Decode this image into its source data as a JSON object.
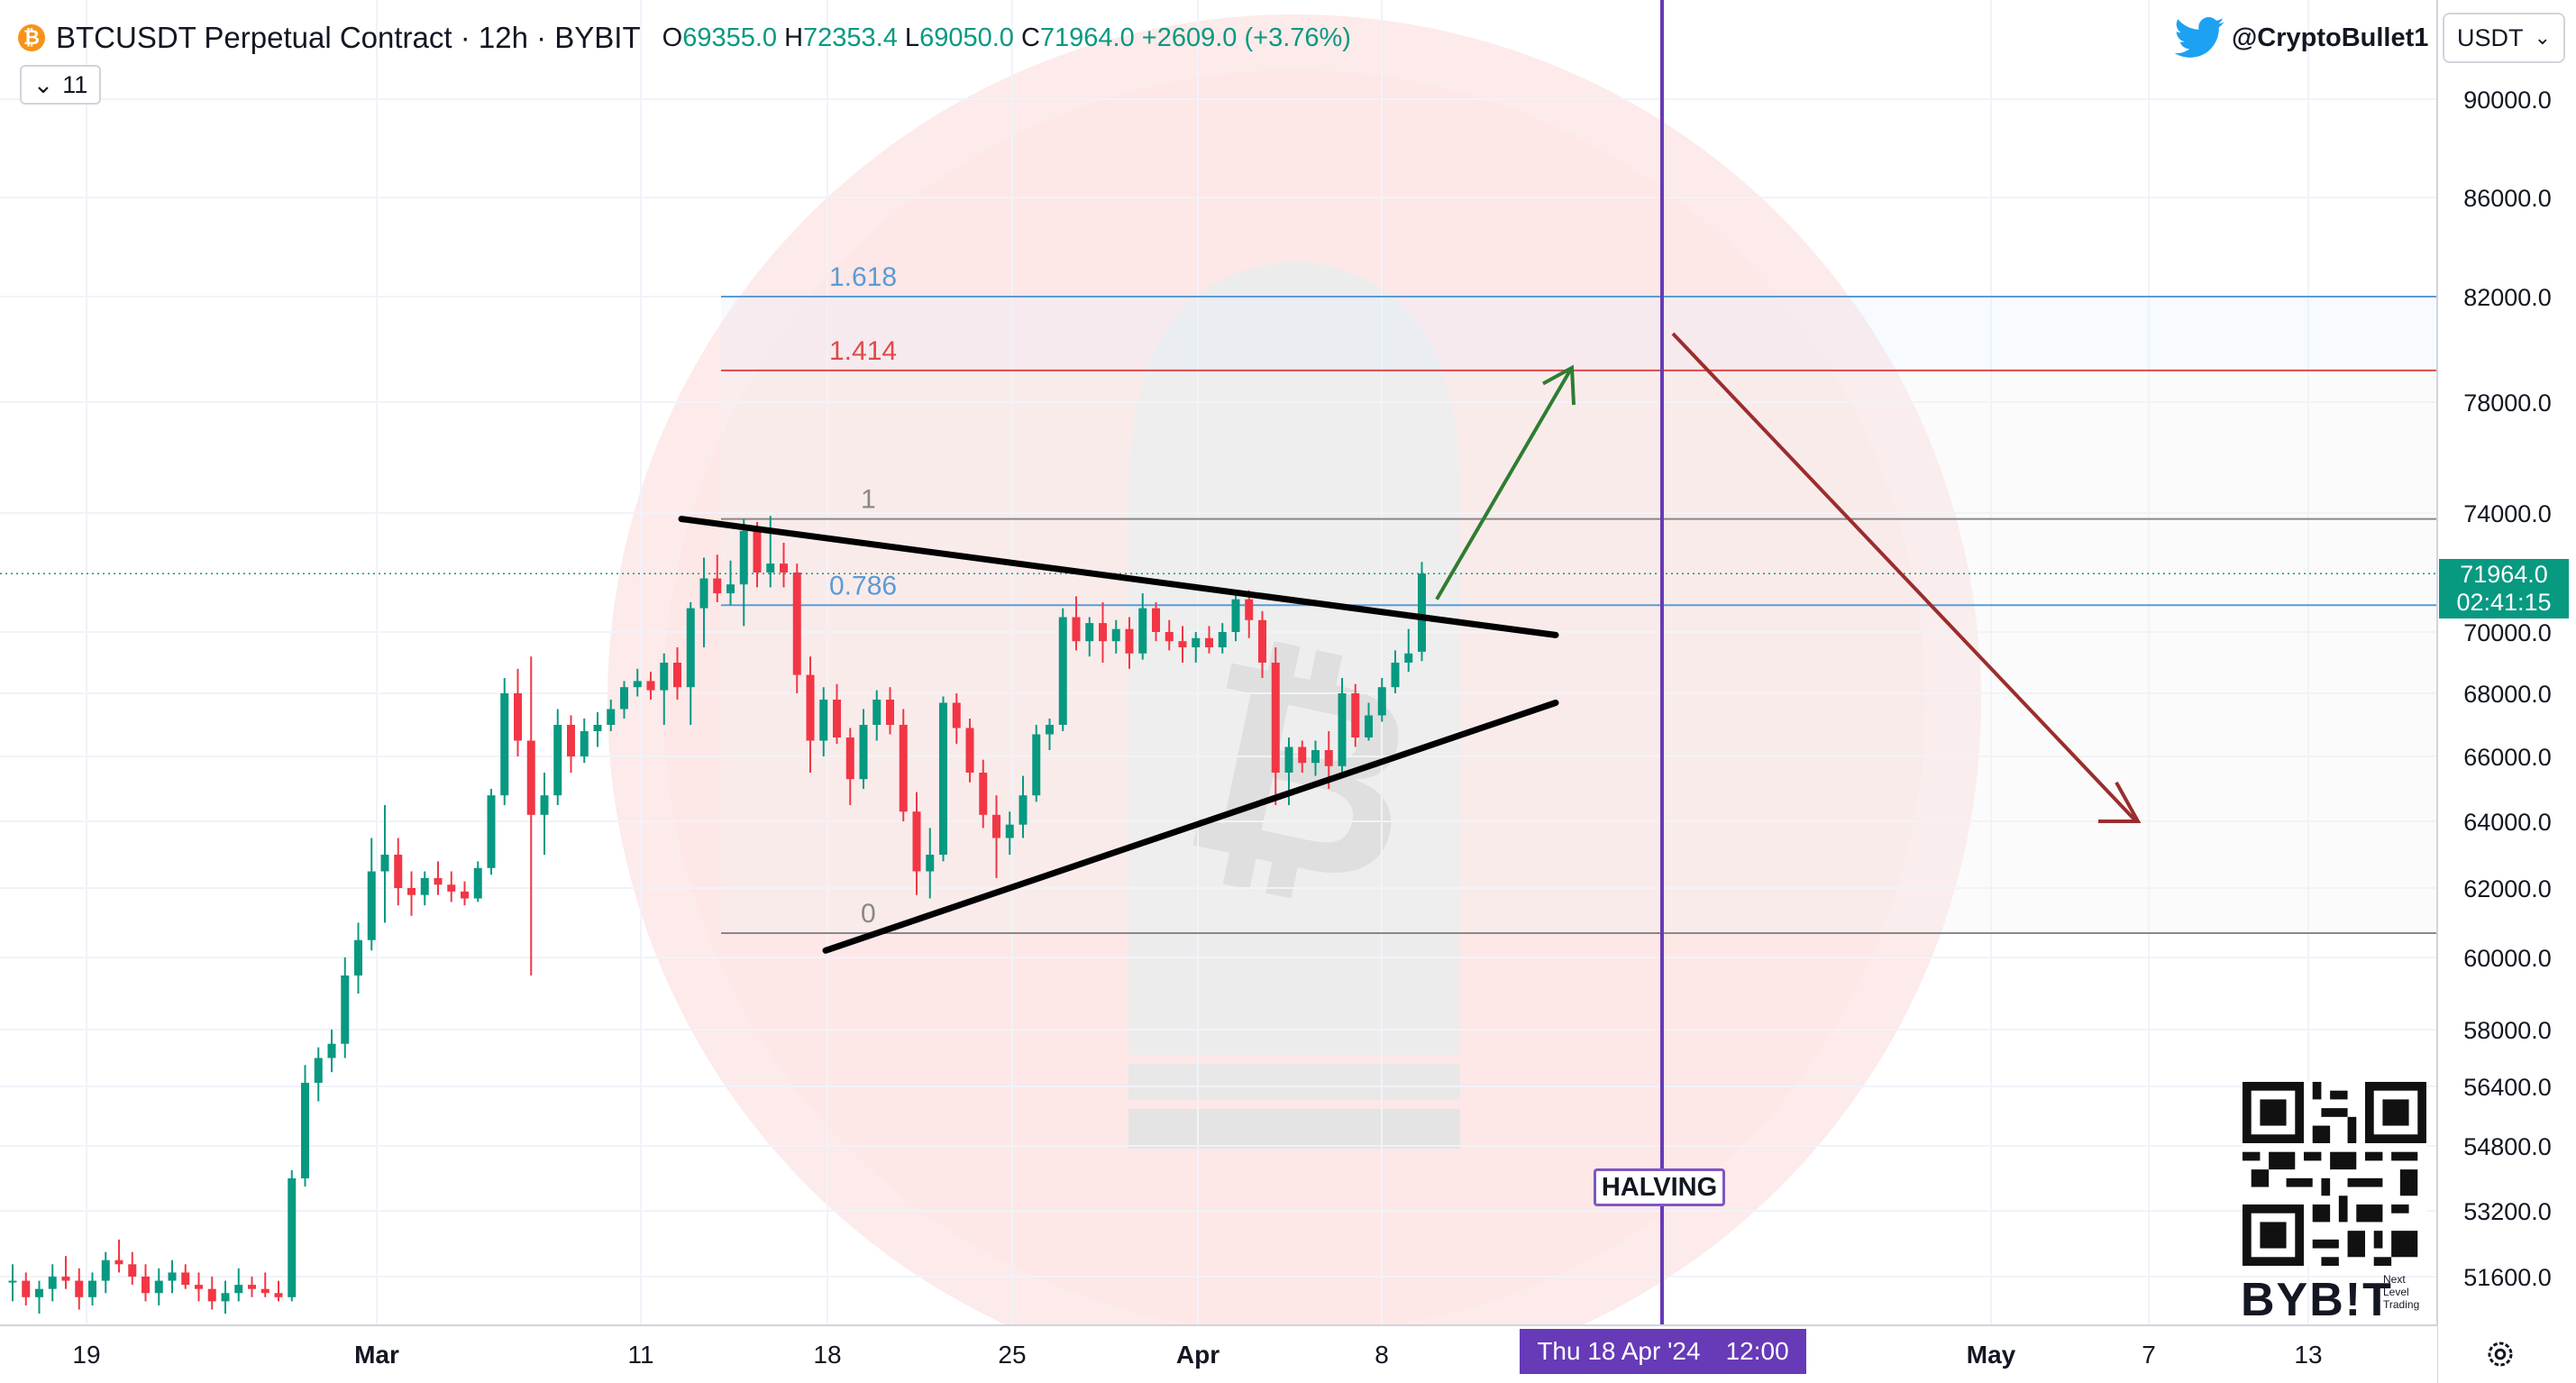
{
  "header": {
    "symbol_icon": "bitcoin-icon",
    "title": "BTCUSDT Perpetual Contract · 12h · BYBIT",
    "open_label": "O",
    "open": "69355.0",
    "high_label": "H",
    "high": "72353.4",
    "low_label": "L",
    "low": "69050.0",
    "close_label": "C",
    "close": "71964.0",
    "change": "+2609.0 (+3.76%)"
  },
  "indicator_toggle": {
    "count": "11",
    "icon": "chevron-down-icon"
  },
  "watermark_handle": {
    "icon": "twitter-icon",
    "text": "@CryptoBullet1"
  },
  "currency_selector": {
    "value": "USDT",
    "icon": "chevron-down-icon"
  },
  "price_label": {
    "price": "71964.0",
    "countdown": "02:41:15"
  },
  "time_label": {
    "date": "Thu 18 Apr '24",
    "time": "12:00"
  },
  "halving_label": "HALVING",
  "brand": {
    "logo_text": "BYB!T",
    "tagline_1": "Next",
    "tagline_2": "Level",
    "tagline_3": "Trading"
  },
  "colors": {
    "up": "#089981",
    "down": "#f23645",
    "fib_blue": "#5b9bd5",
    "fib_red": "#e04848",
    "halving_line": "#673ab7",
    "arrow_up": "#2e7d32",
    "arrow_down": "#9b2d2d",
    "watermark": "#fde8e8"
  },
  "chart_data": {
    "type": "candlestick",
    "y_axis_ticks": [
      "90000.0",
      "86000.0",
      "82000.0",
      "78000.0",
      "74000.0",
      "70000.0",
      "68000.0",
      "66000.0",
      "64000.0",
      "62000.0",
      "60000.0",
      "58000.0",
      "56400.0",
      "54800.0",
      "53200.0",
      "51600.0"
    ],
    "x_axis_ticks": [
      "19",
      "Mar",
      "11",
      "18",
      "25",
      "Apr",
      "8",
      "May",
      "7",
      "13"
    ],
    "candles": [
      [
        51500,
        51900,
        51000,
        51500
      ],
      [
        51500,
        51700,
        50900,
        51100
      ],
      [
        51100,
        51500,
        50700,
        51300
      ],
      [
        51300,
        51900,
        51000,
        51600
      ],
      [
        51600,
        52100,
        51300,
        51500
      ],
      [
        51500,
        51800,
        50800,
        51100
      ],
      [
        51100,
        51700,
        50900,
        51500
      ],
      [
        51500,
        52200,
        51200,
        52000
      ],
      [
        52000,
        52500,
        51700,
        51900
      ],
      [
        51900,
        52200,
        51400,
        51600
      ],
      [
        51600,
        51900,
        51000,
        51200
      ],
      [
        51200,
        51800,
        50900,
        51500
      ],
      [
        51500,
        52000,
        51200,
        51700
      ],
      [
        51700,
        51900,
        51300,
        51400
      ],
      [
        51400,
        51700,
        51000,
        51300
      ],
      [
        51300,
        51600,
        50800,
        51000
      ],
      [
        51000,
        51500,
        50700,
        51200
      ],
      [
        51200,
        51800,
        51000,
        51400
      ],
      [
        51400,
        51600,
        51100,
        51300
      ],
      [
        51300,
        51700,
        51100,
        51200
      ],
      [
        51200,
        51500,
        51000,
        51100
      ],
      [
        51100,
        54200,
        51000,
        54000
      ],
      [
        54000,
        57000,
        53800,
        56500
      ],
      [
        56500,
        57500,
        56000,
        57200
      ],
      [
        57200,
        58000,
        56800,
        57600
      ],
      [
        57600,
        60000,
        57200,
        59500
      ],
      [
        59500,
        61000,
        59000,
        60500
      ],
      [
        60500,
        63500,
        60200,
        62500
      ],
      [
        62500,
        64500,
        61000,
        63000
      ],
      [
        63000,
        63500,
        61500,
        62000
      ],
      [
        62000,
        62500,
        61200,
        61800
      ],
      [
        61800,
        62500,
        61500,
        62300
      ],
      [
        62300,
        62800,
        61800,
        62100
      ],
      [
        62100,
        62500,
        61600,
        61900
      ],
      [
        61900,
        62200,
        61500,
        61700
      ],
      [
        61700,
        62800,
        61600,
        62600
      ],
      [
        62600,
        65000,
        62400,
        64800
      ],
      [
        64800,
        68500,
        64500,
        68000
      ],
      [
        68000,
        68800,
        66000,
        66500
      ],
      [
        66500,
        69200,
        59500,
        64200
      ],
      [
        64200,
        65500,
        63000,
        64800
      ],
      [
        64800,
        67500,
        64500,
        67000
      ],
      [
        67000,
        67300,
        65500,
        66000
      ],
      [
        66000,
        67200,
        65800,
        66800
      ],
      [
        66800,
        67400,
        66300,
        67000
      ],
      [
        67000,
        67800,
        66800,
        67500
      ],
      [
        67500,
        68400,
        67200,
        68200
      ],
      [
        68200,
        68800,
        67900,
        68400
      ],
      [
        68400,
        68700,
        67800,
        68100
      ],
      [
        68100,
        69300,
        67000,
        69000
      ],
      [
        69000,
        69500,
        67800,
        68200
      ],
      [
        68200,
        71000,
        67000,
        70800
      ],
      [
        70800,
        72500,
        69500,
        71800
      ],
      [
        71800,
        72600,
        71000,
        71300
      ],
      [
        71300,
        72400,
        70900,
        71600
      ],
      [
        71600,
        73800,
        70200,
        73400
      ],
      [
        73400,
        73700,
        71500,
        72000
      ],
      [
        72000,
        73900,
        71500,
        72300
      ],
      [
        72300,
        73000,
        71500,
        72000
      ],
      [
        72000,
        72300,
        68000,
        68600
      ],
      [
        68600,
        69200,
        65500,
        66500
      ],
      [
        66500,
        68200,
        66000,
        67800
      ],
      [
        67800,
        68300,
        66400,
        66600
      ],
      [
        66600,
        66900,
        64500,
        65300
      ],
      [
        65300,
        67500,
        65000,
        67000
      ],
      [
        67000,
        68100,
        66500,
        67800
      ],
      [
        67800,
        68200,
        66700,
        67000
      ],
      [
        67000,
        67500,
        64000,
        64300
      ],
      [
        64300,
        64900,
        61800,
        62500
      ],
      [
        62500,
        63800,
        61700,
        63000
      ],
      [
        63000,
        67900,
        62800,
        67700
      ],
      [
        67700,
        68000,
        66400,
        66900
      ],
      [
        66900,
        67200,
        65200,
        65500
      ],
      [
        65500,
        65900,
        63800,
        64200
      ],
      [
        64200,
        64800,
        62300,
        63500
      ],
      [
        63500,
        64300,
        63000,
        63900
      ],
      [
        63900,
        65400,
        63500,
        64800
      ],
      [
        64800,
        67000,
        64600,
        66700
      ],
      [
        66700,
        67200,
        66200,
        67000
      ],
      [
        67000,
        70800,
        66800,
        70500
      ],
      [
        70500,
        71200,
        69400,
        69700
      ],
      [
        69700,
        70500,
        69200,
        70300
      ],
      [
        70300,
        71000,
        69000,
        69700
      ],
      [
        69700,
        70400,
        69300,
        70100
      ],
      [
        70100,
        70500,
        68800,
        69300
      ],
      [
        69300,
        71300,
        69100,
        70800
      ],
      [
        70800,
        71000,
        69700,
        70000
      ],
      [
        70000,
        70400,
        69400,
        69700
      ],
      [
        69700,
        70200,
        69000,
        69500
      ],
      [
        69500,
        70000,
        69000,
        69800
      ],
      [
        69800,
        70200,
        69300,
        69500
      ],
      [
        69500,
        70300,
        69300,
        70000
      ],
      [
        70000,
        71300,
        69700,
        71100
      ],
      [
        71100,
        71400,
        69800,
        70400
      ],
      [
        70400,
        70700,
        68500,
        69000
      ],
      [
        69000,
        69500,
        64500,
        65500
      ],
      [
        65500,
        66600,
        64500,
        66300
      ],
      [
        66300,
        66500,
        65500,
        65800
      ],
      [
        65800,
        66500,
        65400,
        66200
      ],
      [
        66200,
        66800,
        65000,
        65700
      ],
      [
        65700,
        68500,
        65400,
        68000
      ],
      [
        68000,
        68300,
        66300,
        66600
      ],
      [
        66600,
        67700,
        66500,
        67300
      ],
      [
        67300,
        68500,
        67100,
        68200
      ],
      [
        68200,
        69400,
        68000,
        69000
      ],
      [
        69000,
        70100,
        68700,
        69300
      ],
      [
        69355,
        72353.4,
        69050,
        71964
      ]
    ],
    "fib_levels": [
      {
        "ratio": "1.618",
        "price": 82000
      },
      {
        "ratio": "1.414",
        "price": 79200
      },
      {
        "ratio": "1",
        "price": 73800
      },
      {
        "ratio": "0.786",
        "price": 70900
      },
      {
        "ratio": "0",
        "price": 60700
      }
    ],
    "triangle": {
      "upper": [
        [
          "Mar 12",
          73800
        ],
        [
          "Apr 13",
          69900
        ]
      ],
      "lower": [
        [
          "Mar 18",
          60200
        ],
        [
          "Apr 13",
          67700
        ]
      ]
    },
    "halving_date": "Thu 18 Apr '24 12:00",
    "last_price": 71964.0
  }
}
